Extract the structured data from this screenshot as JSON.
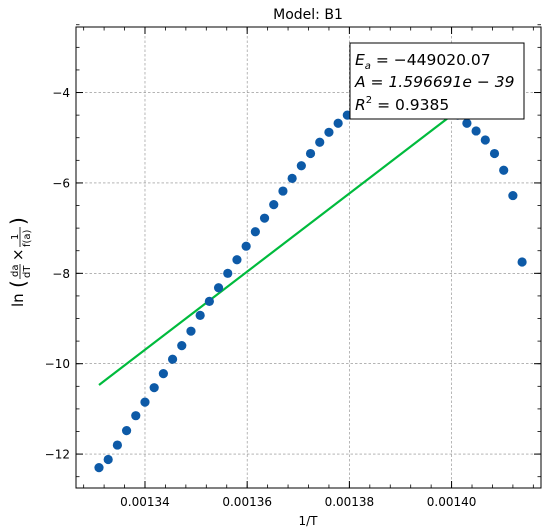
{
  "chart_data": {
    "type": "scatter",
    "title": "Model: B1",
    "xlabel": "1/T",
    "ylabel": "ln(da/dT × 1/f(a))",
    "xlim": [
      0.0013265,
      0.0014175
    ],
    "ylim": [
      -12.75,
      -2.55
    ],
    "grid": true,
    "x_ticks": [
      0.00134,
      0.00136,
      0.00138,
      0.0014
    ],
    "x_tick_labels": [
      "0.00134",
      "0.00136",
      "0.00138",
      "0.00140"
    ],
    "y_ticks": [
      -12,
      -10,
      -8,
      -6,
      -4
    ],
    "y_tick_labels": [
      "−12",
      "−10",
      "−8",
      "−6",
      "−4"
    ],
    "colors": {
      "points": "#0d5aa7",
      "fit": "#00bb3d"
    },
    "series": [
      {
        "kind": "points",
        "x": [
          0.001331,
          0.0013328,
          0.0013346,
          0.0013364,
          0.0013382,
          0.00134,
          0.0013418,
          0.0013436,
          0.0013454,
          0.0013472,
          0.001349,
          0.0013508,
          0.0013526,
          0.0013544,
          0.0013562,
          0.001358,
          0.0013598,
          0.0013616,
          0.0013634,
          0.0013652,
          0.001367,
          0.0013688,
          0.0013706,
          0.0013724,
          0.0013742,
          0.001376,
          0.0013778,
          0.0013796,
          0.0013814,
          0.0013832,
          0.001385,
          0.0013868,
          0.0013886,
          0.0013904,
          0.0013922,
          0.001394,
          0.0013958,
          0.0013976,
          0.0013994,
          0.0014012,
          0.001403,
          0.0014048,
          0.0014066,
          0.0014084,
          0.0014102,
          0.001412,
          0.0014138
        ],
        "y": [
          -12.3,
          -12.12,
          -11.8,
          -11.48,
          -11.15,
          -10.85,
          -10.53,
          -10.22,
          -9.9,
          -9.6,
          -9.28,
          -8.93,
          -8.62,
          -8.32,
          -8.0,
          -7.7,
          -7.4,
          -7.08,
          -6.78,
          -6.48,
          -6.18,
          -5.9,
          -5.62,
          -5.35,
          -5.1,
          -4.88,
          -4.68,
          -4.5,
          -4.35,
          -4.22,
          -4.12,
          -4.05,
          -4.0,
          -3.98,
          -3.98,
          -4.02,
          -4.1,
          -4.2,
          -4.35,
          -4.5,
          -4.68,
          -4.85,
          -5.05,
          -5.35,
          -5.72,
          -6.28,
          -7.75
        ]
      },
      {
        "kind": "fit-line",
        "x": [
          0.001331,
          0.0014035
        ],
        "y": [
          -10.47,
          -4.2
        ]
      }
    ],
    "annotation": {
      "line1_prefix": "E",
      "line1_sub": "a",
      "line1_value": " = −449020.07",
      "line2": "A = 1.596691e − 39",
      "line3_prefix": "R",
      "line3_sup": "2",
      "line3_value": " = 0.9385"
    }
  }
}
